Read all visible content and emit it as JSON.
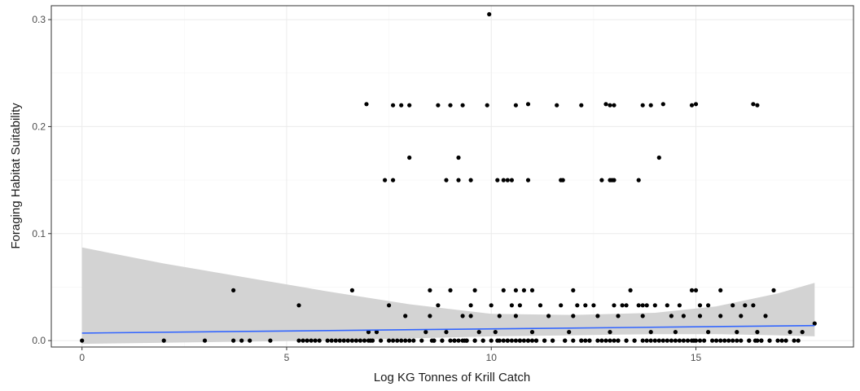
{
  "chart_data": {
    "type": "scatter",
    "title": "",
    "xlabel": "Log KG Tonnes of Krill Catch",
    "ylabel": "Foraging Habitat Suitability",
    "xlim": [
      -0.75,
      18.85
    ],
    "ylim": [
      -0.006,
      0.313
    ],
    "x_ticks": [
      0,
      5,
      10,
      15
    ],
    "x_tick_labels": [
      "0",
      "5",
      "10",
      "15"
    ],
    "y_ticks": [
      0.0,
      0.1,
      0.2,
      0.3
    ],
    "y_tick_labels": [
      "0.0",
      "0.1",
      "0.2",
      "0.3"
    ],
    "grid": true,
    "legend": "none",
    "colors": {
      "points": "#000000",
      "smooth_line": "#3366ff",
      "ribbon": "#d3d3d3",
      "grid_major": "#ebebeb",
      "grid_minor": "#f5f5f5",
      "panel_border": "#333333"
    },
    "points": {
      "x": [
        0.0,
        2.0,
        3.0,
        3.7,
        3.9,
        4.1,
        4.6,
        5.3,
        5.4,
        5.5,
        5.6,
        6.7,
        7.0,
        7.05,
        7.5,
        7.6,
        7.8,
        7.9,
        8.0,
        8.55,
        8.6,
        8.8,
        9.0,
        9.1,
        9.2,
        9.3,
        9.35,
        9.4,
        9.6,
        9.8,
        10.0,
        10.15,
        10.3,
        10.4,
        10.5,
        10.6,
        10.7,
        10.8,
        10.9,
        11.0,
        11.1,
        11.3,
        11.5,
        11.8,
        12.0,
        12.2,
        12.3,
        12.4,
        12.6,
        12.8,
        13.0,
        13.1,
        13.3,
        13.5,
        13.8,
        14.0,
        14.2,
        14.4,
        14.6,
        14.8,
        14.95,
        15.0,
        15.1,
        15.4,
        15.6,
        15.8,
        16.0,
        16.3,
        16.45,
        16.5,
        16.6,
        16.8,
        17.0,
        17.2,
        17.5,
        17.9,
        6.95,
        7.6,
        7.8,
        8.0,
        8.7,
        9.0,
        9.3,
        9.9,
        10.6,
        10.9,
        11.6,
        12.2,
        12.8,
        12.9,
        13.0,
        13.7,
        13.9,
        14.2,
        14.9,
        15.0,
        16.4,
        16.5,
        7.4,
        7.6,
        8.9,
        9.2,
        9.5,
        10.15,
        10.3,
        10.4,
        10.5,
        10.9,
        11.7,
        11.75,
        12.7,
        12.9,
        12.95,
        13.0,
        13.6,
        8.0,
        9.2,
        14.1,
        9.95,
        3.7,
        6.6,
        8.5,
        9.0,
        9.6,
        10.3,
        10.6,
        10.8,
        11.0,
        12.0,
        13.4,
        14.9,
        15.0,
        15.6,
        16.9,
        5.3,
        7.5,
        8.7,
        9.5,
        10.0,
        10.5,
        10.7,
        11.2,
        11.7,
        12.1,
        12.3,
        12.5,
        13.0,
        13.2,
        13.3,
        13.6,
        13.7,
        13.8,
        14.0,
        14.3,
        14.6,
        15.1,
        15.3,
        15.9,
        16.2,
        16.4,
        7.9,
        8.5,
        9.3,
        9.5,
        10.2,
        10.6,
        11.4,
        12.0,
        12.6,
        13.1,
        13.7,
        14.4,
        14.7,
        15.1,
        15.6,
        16.1,
        16.7,
        7.0,
        7.2,
        8.4,
        8.9,
        9.7,
        10.1,
        11.0,
        11.9,
        12.9,
        13.9,
        14.5,
        15.3,
        16.0,
        16.5,
        17.3,
        17.6,
        6.2,
        6.5,
        6.9,
        7.3,
        7.7,
        8.1,
        8.3,
        8.6,
        8.8,
        9.1,
        9.4,
        9.6,
        9.8,
        10.2,
        10.4,
        10.7,
        10.9,
        11.1,
        11.3,
        11.5,
        11.8,
        12.2,
        12.4,
        12.7,
        12.9,
        13.1,
        13.3,
        13.5,
        13.7,
        13.9,
        14.1,
        14.3,
        14.5,
        14.7,
        14.9,
        15.2,
        15.5,
        15.7,
        15.9,
        16.1,
        16.3,
        16.6,
        16.8,
        17.1,
        17.4,
        6.0,
        5.8,
        5.7,
        6.1,
        6.3,
        6.4,
        6.6,
        6.8,
        7.1
      ],
      "y": [
        0.0,
        0.0,
        0.0,
        0.0,
        0.0,
        0.0,
        0.0,
        0.0,
        0.0,
        0.0,
        0.0,
        0.0,
        0.0,
        0.0,
        0.0,
        0.0,
        0.0,
        0.0,
        0.0,
        0.0,
        0.0,
        0.0,
        0.0,
        0.0,
        0.0,
        0.0,
        0.0,
        0.0,
        0.0,
        0.0,
        0.0,
        0.0,
        0.0,
        0.0,
        0.0,
        0.0,
        0.0,
        0.0,
        0.0,
        0.0,
        0.0,
        0.0,
        0.0,
        0.0,
        0.0,
        0.0,
        0.0,
        0.0,
        0.0,
        0.0,
        0.0,
        0.0,
        0.0,
        0.0,
        0.0,
        0.0,
        0.0,
        0.0,
        0.0,
        0.0,
        0.0,
        0.0,
        0.0,
        0.0,
        0.0,
        0.0,
        0.0,
        0.0,
        0.0,
        0.0,
        0.0,
        0.0,
        0.0,
        0.0,
        0.0,
        0.016,
        0.221,
        0.22,
        0.22,
        0.22,
        0.22,
        0.22,
        0.22,
        0.22,
        0.22,
        0.221,
        0.22,
        0.22,
        0.221,
        0.22,
        0.22,
        0.22,
        0.22,
        0.221,
        0.22,
        0.221,
        0.221,
        0.22,
        0.15,
        0.15,
        0.15,
        0.15,
        0.15,
        0.15,
        0.15,
        0.15,
        0.15,
        0.15,
        0.15,
        0.15,
        0.15,
        0.15,
        0.15,
        0.15,
        0.15,
        0.171,
        0.171,
        0.171,
        0.305,
        0.047,
        0.047,
        0.047,
        0.047,
        0.047,
        0.047,
        0.047,
        0.047,
        0.047,
        0.047,
        0.047,
        0.047,
        0.047,
        0.047,
        0.047,
        0.033,
        0.033,
        0.033,
        0.033,
        0.033,
        0.033,
        0.033,
        0.033,
        0.033,
        0.033,
        0.033,
        0.033,
        0.033,
        0.033,
        0.033,
        0.033,
        0.033,
        0.033,
        0.033,
        0.033,
        0.033,
        0.033,
        0.033,
        0.033,
        0.033,
        0.033,
        0.023,
        0.023,
        0.023,
        0.023,
        0.023,
        0.023,
        0.023,
        0.023,
        0.023,
        0.023,
        0.023,
        0.023,
        0.023,
        0.023,
        0.023,
        0.023,
        0.023,
        0.008,
        0.008,
        0.008,
        0.008,
        0.008,
        0.008,
        0.008,
        0.008,
        0.008,
        0.008,
        0.008,
        0.008,
        0.008,
        0.008,
        0.008,
        0.008,
        0.0,
        0.0,
        0.0,
        0.0,
        0.0,
        0.0,
        0.0,
        0.0,
        0.0,
        0.0,
        0.0,
        0.0,
        0.0,
        0.0,
        0.0,
        0.0,
        0.0,
        0.0,
        0.0,
        0.0,
        0.0,
        0.0,
        0.0,
        0.0,
        0.0,
        0.0,
        0.0,
        0.0,
        0.0,
        0.0,
        0.0,
        0.0,
        0.0,
        0.0,
        0.0,
        0.0,
        0.0,
        0.0,
        0.0,
        0.0,
        0.0,
        0.0,
        0.0,
        0.0,
        0.0,
        0.0,
        0.0,
        0.0,
        0.0,
        0.0,
        0.0,
        0.0,
        0.0,
        0.0
      ]
    },
    "smooth": {
      "x": [
        0.0,
        17.9
      ],
      "y": [
        0.007,
        0.014
      ]
    },
    "confidence_band": {
      "x": [
        0.0,
        2.0,
        4.0,
        6.0,
        8.0,
        10.0,
        12.0,
        14.0,
        15.5,
        17.0,
        17.9
      ],
      "upper": [
        0.087,
        0.072,
        0.059,
        0.046,
        0.034,
        0.025,
        0.024,
        0.026,
        0.032,
        0.044,
        0.054
      ],
      "lower": [
        -0.003,
        -0.002,
        -0.001,
        0.0,
        0.002,
        0.004,
        0.005,
        0.006,
        0.006,
        0.005,
        0.004
      ]
    }
  }
}
